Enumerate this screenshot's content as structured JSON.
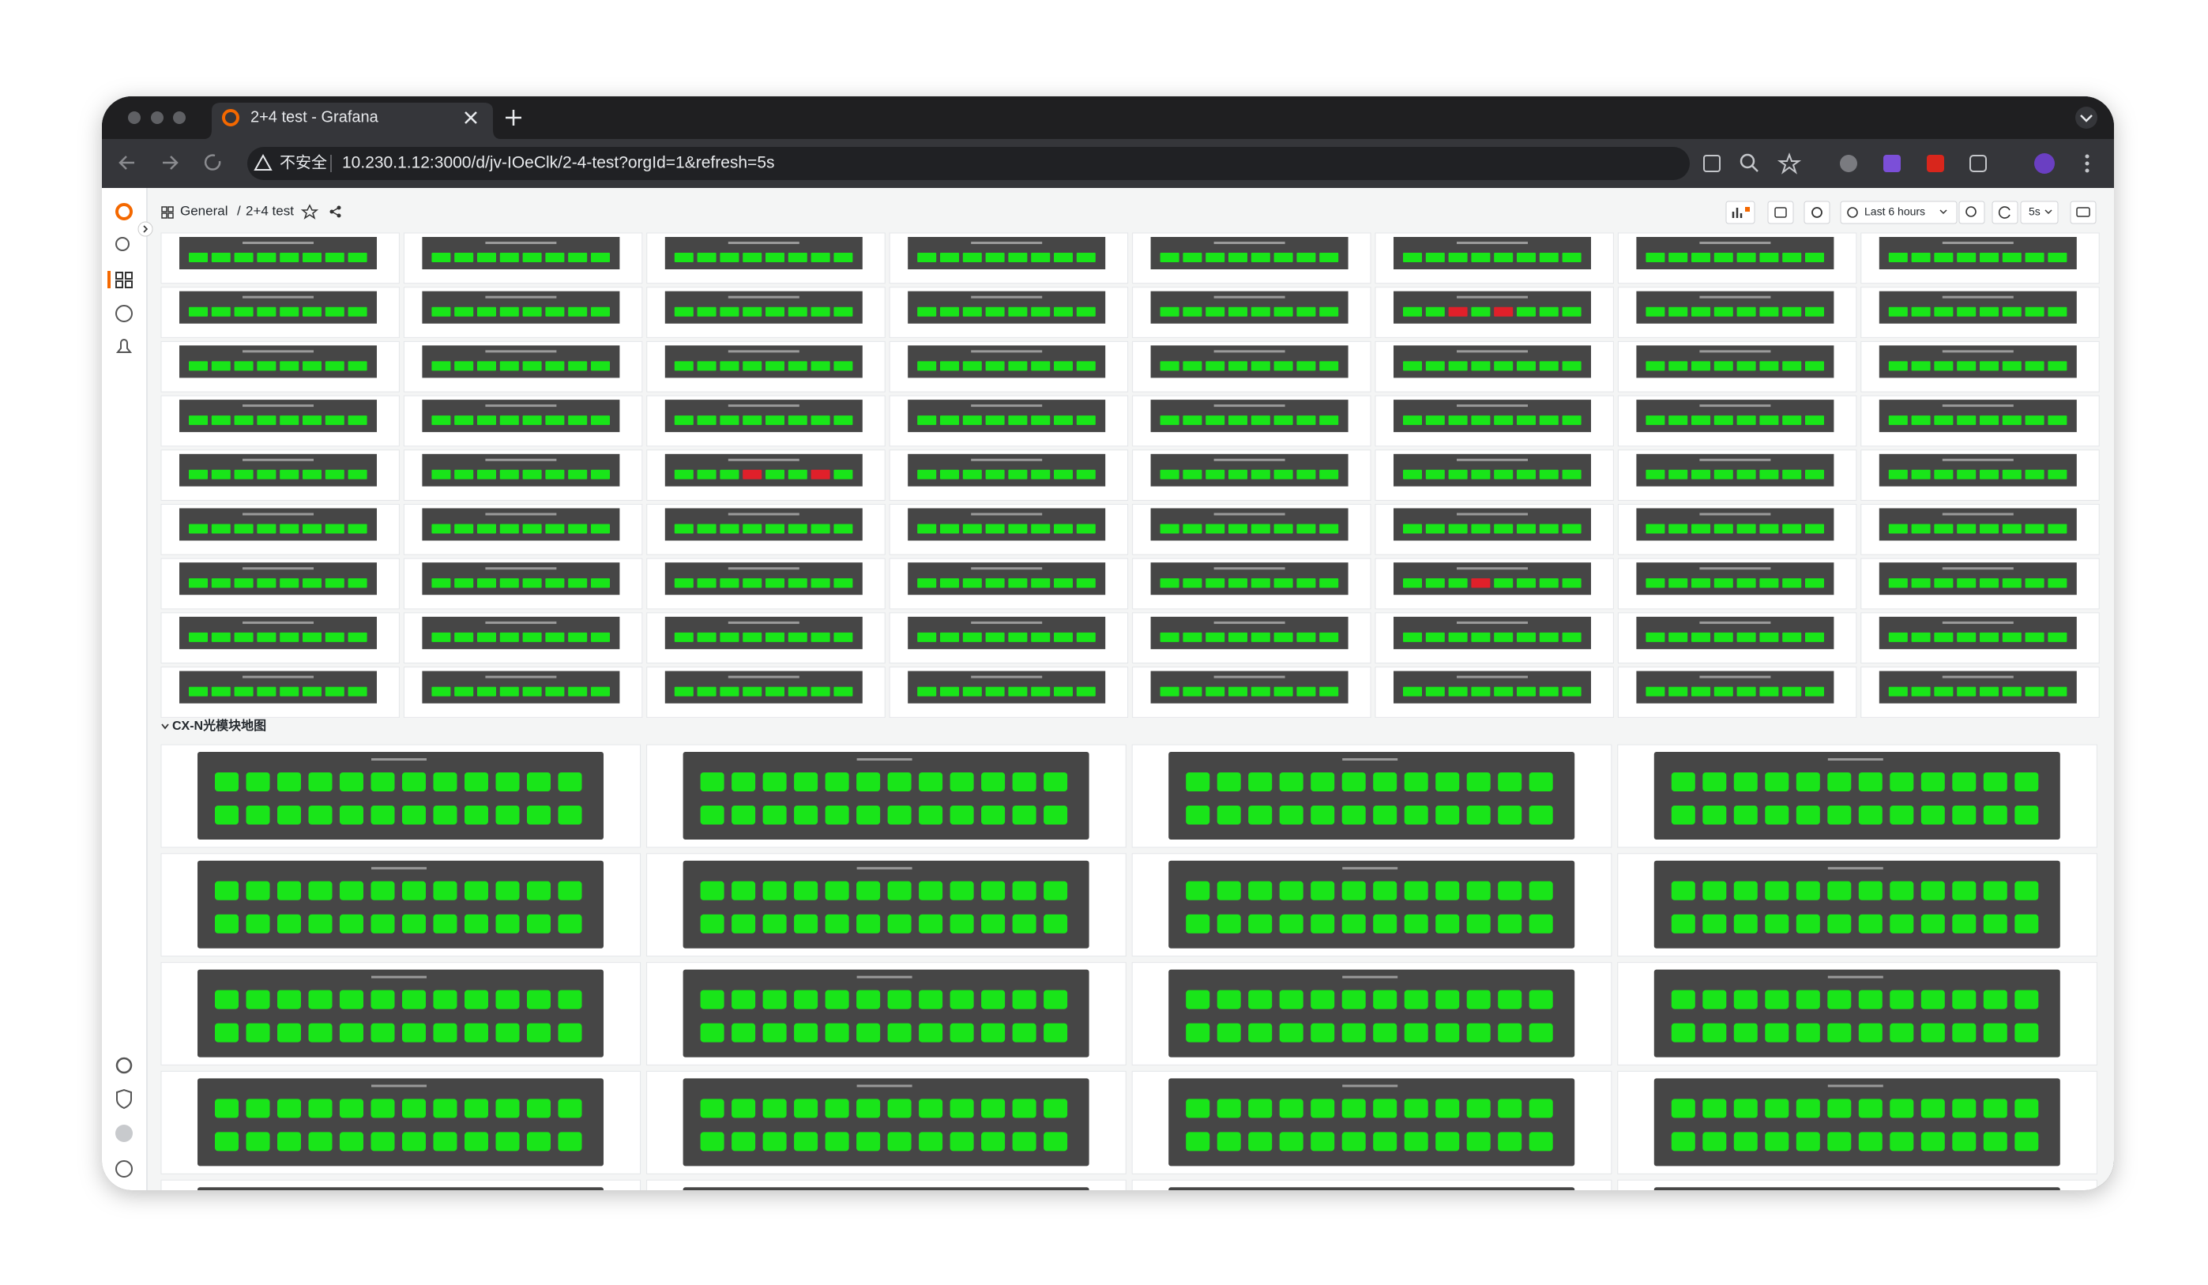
{
  "browser": {
    "tab_title": "2+4 test - Grafana",
    "insecure_label": "不安全",
    "url": "10.230.1.12:3000/d/jv-IOeClk/2-4-test?orgId=1&refresh=5s"
  },
  "grafana": {
    "breadcrumb": [
      "General",
      "2+4 test"
    ],
    "breadcrumb_separator": "/",
    "time_range": "Last 6 hours",
    "refresh": "5s",
    "section_title": "CX-N光模块地图"
  }
}
